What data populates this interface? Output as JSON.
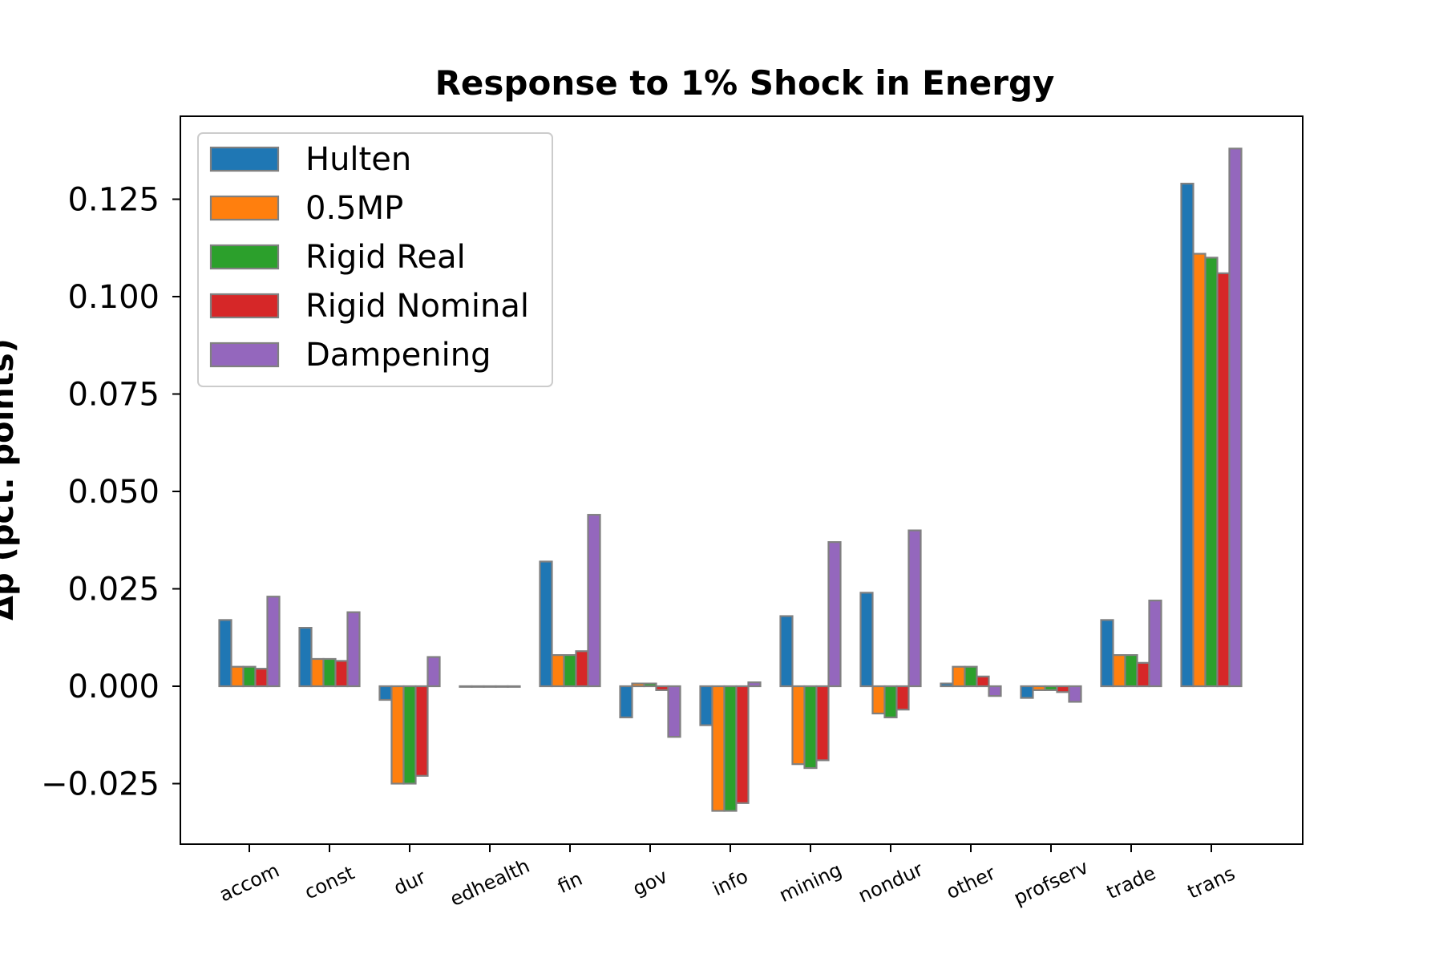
{
  "chart_data": {
    "type": "bar",
    "title": "Response to 1% Shock in Energy",
    "ylabel": "Δp (pct. points)",
    "xlabel": "",
    "ylim": [
      -0.04,
      0.146
    ],
    "yticks": [
      -0.025,
      0.0,
      0.025,
      0.05,
      0.075,
      0.1,
      0.125
    ],
    "ytick_labels": [
      "−0.025",
      "0.000",
      "0.025",
      "0.050",
      "0.075",
      "0.100",
      "0.125"
    ],
    "categories": [
      "accom",
      "const",
      "dur",
      "edhealth",
      "fin",
      "gov",
      "info",
      "mining",
      "nondur",
      "other",
      "profserv",
      "trade",
      "trans"
    ],
    "legend_position": "top-left",
    "grid": false,
    "bar_edge_color": "#808080",
    "series": [
      {
        "name": "Hulten",
        "color": "#1f77b4",
        "values": [
          0.017,
          0.015,
          -0.0035,
          0.0,
          0.032,
          -0.008,
          -0.01,
          0.018,
          0.024,
          0.0007,
          -0.003,
          0.017,
          0.129
        ]
      },
      {
        "name": "0.5MP",
        "color": "#ff7f0e",
        "values": [
          0.005,
          0.007,
          -0.025,
          0.0,
          0.008,
          0.0007,
          -0.032,
          -0.02,
          -0.007,
          0.005,
          -0.001,
          0.008,
          0.111
        ]
      },
      {
        "name": "Rigid Real",
        "color": "#2ca02c",
        "values": [
          0.005,
          0.007,
          -0.025,
          0.0,
          0.008,
          0.0007,
          -0.032,
          -0.021,
          -0.008,
          0.005,
          -0.001,
          0.008,
          0.11
        ]
      },
      {
        "name": "Rigid Nominal",
        "color": "#d62728",
        "values": [
          0.0045,
          0.0065,
          -0.023,
          0.0,
          0.009,
          -0.001,
          -0.03,
          -0.019,
          -0.006,
          0.0025,
          -0.0015,
          0.006,
          0.106
        ]
      },
      {
        "name": "Dampening",
        "color": "#9467bd",
        "values": [
          0.023,
          0.019,
          0.0075,
          0.0,
          0.044,
          -0.013,
          0.001,
          0.037,
          0.04,
          -0.0025,
          -0.004,
          0.022,
          0.138
        ]
      }
    ]
  }
}
